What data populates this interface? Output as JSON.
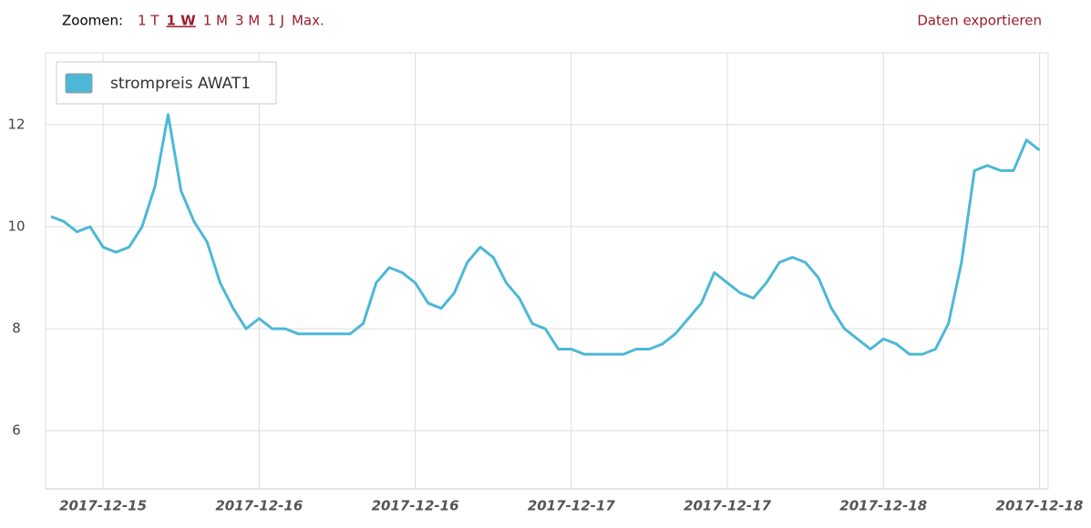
{
  "toolbar": {
    "label": "Zoomen:",
    "zoom_options": [
      "1 T",
      "1 W",
      "1 M",
      "3 M",
      "1 J",
      "Max."
    ],
    "active_zoom": 1,
    "export": "Daten exportieren"
  },
  "chart_data": {
    "type": "line",
    "categories": [
      null,
      null,
      null,
      null,
      "2017-12-15",
      null,
      null,
      null,
      null,
      null,
      null,
      null,
      null,
      null,
      null,
      null,
      "2017-12-16",
      null,
      null,
      null,
      null,
      null,
      null,
      null,
      null,
      null,
      null,
      null,
      "2017-12-16",
      null,
      null,
      null,
      null,
      null,
      null,
      null,
      null,
      null,
      null,
      null,
      "2017-12-17",
      null,
      null,
      null,
      null,
      null,
      null,
      null,
      null,
      null,
      null,
      null,
      "2017-12-17",
      null,
      null,
      null,
      null,
      null,
      null,
      null,
      null,
      null,
      null,
      null,
      "2017-12-18",
      null,
      null,
      null,
      null,
      null,
      null,
      null,
      null,
      null,
      null,
      null,
      "2017-12-18"
    ],
    "series": [
      {
        "name": "strompreis AWAT1",
        "color": "#4db8d6",
        "values": [
          10.2,
          10.1,
          9.9,
          10.0,
          9.6,
          9.5,
          9.6,
          10.0,
          10.8,
          12.2,
          10.7,
          10.1,
          9.7,
          8.9,
          8.4,
          8.0,
          8.2,
          8.0,
          8.0,
          7.9,
          7.9,
          7.9,
          7.9,
          7.9,
          8.1,
          8.9,
          9.2,
          9.1,
          8.9,
          8.5,
          8.4,
          8.7,
          9.3,
          9.6,
          9.4,
          8.9,
          8.6,
          8.1,
          8.0,
          7.6,
          7.6,
          7.5,
          7.5,
          7.5,
          7.5,
          7.6,
          7.6,
          7.7,
          7.9,
          8.2,
          8.5,
          9.1,
          8.9,
          8.7,
          8.6,
          8.9,
          9.3,
          9.4,
          9.3,
          9.0,
          8.4,
          8.0,
          7.8,
          7.6,
          7.8,
          7.7,
          7.5,
          7.5,
          7.6,
          8.1,
          9.3,
          11.1,
          11.2,
          11.1,
          11.1,
          11.7,
          11.5
        ]
      }
    ],
    "ylim": [
      4.86,
      13.41
    ],
    "yticks": [
      6,
      8,
      10,
      12
    ],
    "grid": true,
    "legend": "top-left"
  }
}
